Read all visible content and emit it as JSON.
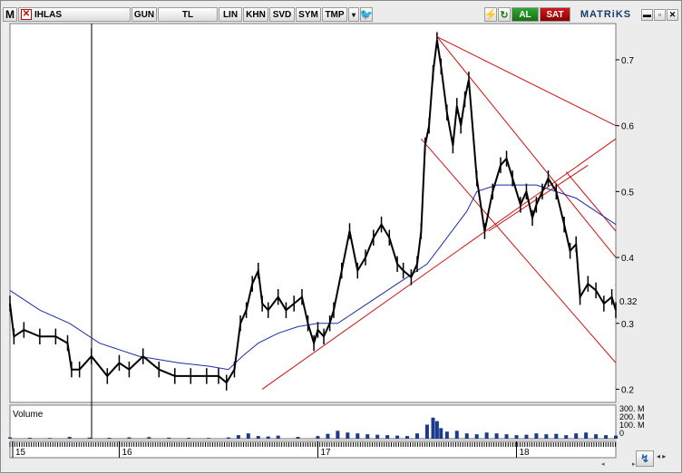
{
  "toolbar": {
    "logo": "M",
    "symbol": "IHLAS",
    "period": "GUN",
    "currency": "TL",
    "scale": "LIN",
    "khn": "KHN",
    "svd": "SVD",
    "sym": "SYM",
    "tmp": "TMP",
    "dropdown": "▾",
    "twitter": "🐦",
    "flash": "⚡",
    "refresh": "↻",
    "buy": "AL",
    "sell": "SAT",
    "brand": "MATRiKS",
    "min": "▬",
    "max": "▫",
    "close": "✕",
    "corner": "↯",
    "arrows": "◂ ▸",
    "scroll_left": "◂",
    "scroll_right": "▸"
  },
  "colors": {
    "price": "#000000",
    "moving_average": "#1a2ea8",
    "trendlines": "#d01010",
    "volume": "#1a3a8a",
    "buy": "#1f8f1f",
    "sell": "#c00000"
  },
  "chart_data": {
    "type": "line",
    "title": "",
    "price_axis": {
      "ticks": [
        0.2,
        0.3,
        0.4,
        0.5,
        0.6,
        0.7
      ],
      "last_value": "0.32",
      "ylim": [
        0.18,
        0.755
      ]
    },
    "time_axis": {
      "labels": [
        "15",
        "16",
        "17",
        "18"
      ],
      "years_span": [
        2015.45,
        2018.5
      ]
    },
    "volume_axis": {
      "label": "Volume",
      "ticks": [
        "300. M",
        "200. M",
        "100. M",
        "0"
      ],
      "ylim": [
        0,
        300
      ]
    },
    "series": [
      {
        "key": "price",
        "t": [
          2015.45,
          2015.47,
          2015.52,
          2015.6,
          2015.68,
          2015.74,
          2015.76,
          2015.8,
          2015.86,
          2015.94,
          2016.0,
          2016.05,
          2016.12,
          2016.2,
          2016.28,
          2016.36,
          2016.44,
          2016.5,
          2016.54,
          2016.58,
          2016.61,
          2016.64,
          2016.67,
          2016.7,
          2016.72,
          2016.75,
          2016.8,
          2016.84,
          2016.88,
          2016.92,
          2016.95,
          2016.98,
          2017.0,
          2017.03,
          2017.06,
          2017.08,
          2017.12,
          2017.16,
          2017.2,
          2017.24,
          2017.28,
          2017.32,
          2017.36,
          2017.4,
          2017.43,
          2017.47,
          2017.5,
          2017.52,
          2017.54,
          2017.56,
          2017.58,
          2017.6,
          2017.62,
          2017.65,
          2017.68,
          2017.7,
          2017.72,
          2017.74,
          2017.76,
          2017.8,
          2017.84,
          2017.88,
          2017.92,
          2017.95,
          2017.98,
          2018.02,
          2018.05,
          2018.08,
          2018.1,
          2018.13,
          2018.16,
          2018.2,
          2018.24,
          2018.27,
          2018.3,
          2018.32,
          2018.36,
          2018.4,
          2018.44,
          2018.48,
          2018.5
        ],
        "v": [
          0.33,
          0.28,
          0.29,
          0.28,
          0.28,
          0.27,
          0.23,
          0.23,
          0.25,
          0.22,
          0.24,
          0.23,
          0.25,
          0.23,
          0.22,
          0.22,
          0.22,
          0.22,
          0.21,
          0.23,
          0.3,
          0.32,
          0.36,
          0.38,
          0.33,
          0.32,
          0.34,
          0.32,
          0.33,
          0.34,
          0.3,
          0.27,
          0.29,
          0.28,
          0.3,
          0.32,
          0.38,
          0.44,
          0.38,
          0.4,
          0.43,
          0.45,
          0.43,
          0.39,
          0.38,
          0.37,
          0.39,
          0.44,
          0.57,
          0.6,
          0.68,
          0.73,
          0.69,
          0.62,
          0.57,
          0.63,
          0.6,
          0.64,
          0.67,
          0.52,
          0.44,
          0.5,
          0.54,
          0.55,
          0.52,
          0.48,
          0.5,
          0.46,
          0.48,
          0.5,
          0.52,
          0.5,
          0.45,
          0.41,
          0.42,
          0.34,
          0.36,
          0.35,
          0.33,
          0.34,
          0.32
        ]
      },
      {
        "key": "moving_average",
        "t": [
          2015.45,
          2015.6,
          2015.75,
          2015.9,
          2016.1,
          2016.3,
          2016.45,
          2016.55,
          2016.62,
          2016.7,
          2016.8,
          2016.9,
          2017.0,
          2017.1,
          2017.2,
          2017.3,
          2017.4,
          2017.45,
          2017.5,
          2017.55,
          2017.6,
          2017.65,
          2017.7,
          2017.75,
          2017.8,
          2017.9,
          2018.0,
          2018.1,
          2018.2,
          2018.3,
          2018.4,
          2018.5
        ],
        "v": [
          0.35,
          0.32,
          0.3,
          0.27,
          0.25,
          0.24,
          0.235,
          0.23,
          0.25,
          0.27,
          0.285,
          0.295,
          0.3,
          0.3,
          0.32,
          0.34,
          0.36,
          0.37,
          0.38,
          0.39,
          0.41,
          0.43,
          0.45,
          0.47,
          0.5,
          0.51,
          0.51,
          0.51,
          0.5,
          0.49,
          0.47,
          0.45
        ]
      }
    ],
    "trendlines": [
      {
        "t": [
          2016.72,
          2018.5
        ],
        "v": [
          0.2,
          0.58
        ]
      },
      {
        "t": [
          2017.6,
          2018.5
        ],
        "v": [
          0.735,
          0.6
        ]
      },
      {
        "t": [
          2017.6,
          2018.5
        ],
        "v": [
          0.735,
          0.4
        ]
      },
      {
        "t": [
          2017.52,
          2018.5
        ],
        "v": [
          0.58,
          0.24
        ]
      },
      {
        "t": [
          2017.86,
          2018.36
        ],
        "v": [
          0.44,
          0.54
        ]
      },
      {
        "t": [
          2018.25,
          2018.5
        ],
        "v": [
          0.53,
          0.44
        ]
      }
    ],
    "volume": {
      "t": [
        2015.45,
        2015.55,
        2015.65,
        2015.75,
        2015.85,
        2015.95,
        2016.05,
        2016.15,
        2016.25,
        2016.35,
        2016.45,
        2016.55,
        2016.6,
        2016.65,
        2016.7,
        2016.75,
        2016.8,
        2016.9,
        2017.0,
        2017.05,
        2017.1,
        2017.15,
        2017.2,
        2017.25,
        2017.3,
        2017.35,
        2017.4,
        2017.45,
        2017.5,
        2017.55,
        2017.58,
        2017.6,
        2017.62,
        2017.65,
        2017.7,
        2017.75,
        2017.8,
        2017.85,
        2017.9,
        2017.95,
        2018.0,
        2018.05,
        2018.1,
        2018.15,
        2018.2,
        2018.25,
        2018.3,
        2018.35,
        2018.4,
        2018.45,
        2018.5
      ],
      "v": [
        15,
        10,
        8,
        20,
        12,
        10,
        15,
        18,
        12,
        10,
        8,
        14,
        40,
        60,
        30,
        25,
        35,
        20,
        30,
        55,
        90,
        70,
        60,
        50,
        45,
        40,
        35,
        30,
        60,
        160,
        240,
        200,
        120,
        80,
        90,
        60,
        50,
        70,
        60,
        50,
        40,
        45,
        60,
        50,
        55,
        40,
        60,
        70,
        50,
        40,
        35
      ]
    }
  }
}
